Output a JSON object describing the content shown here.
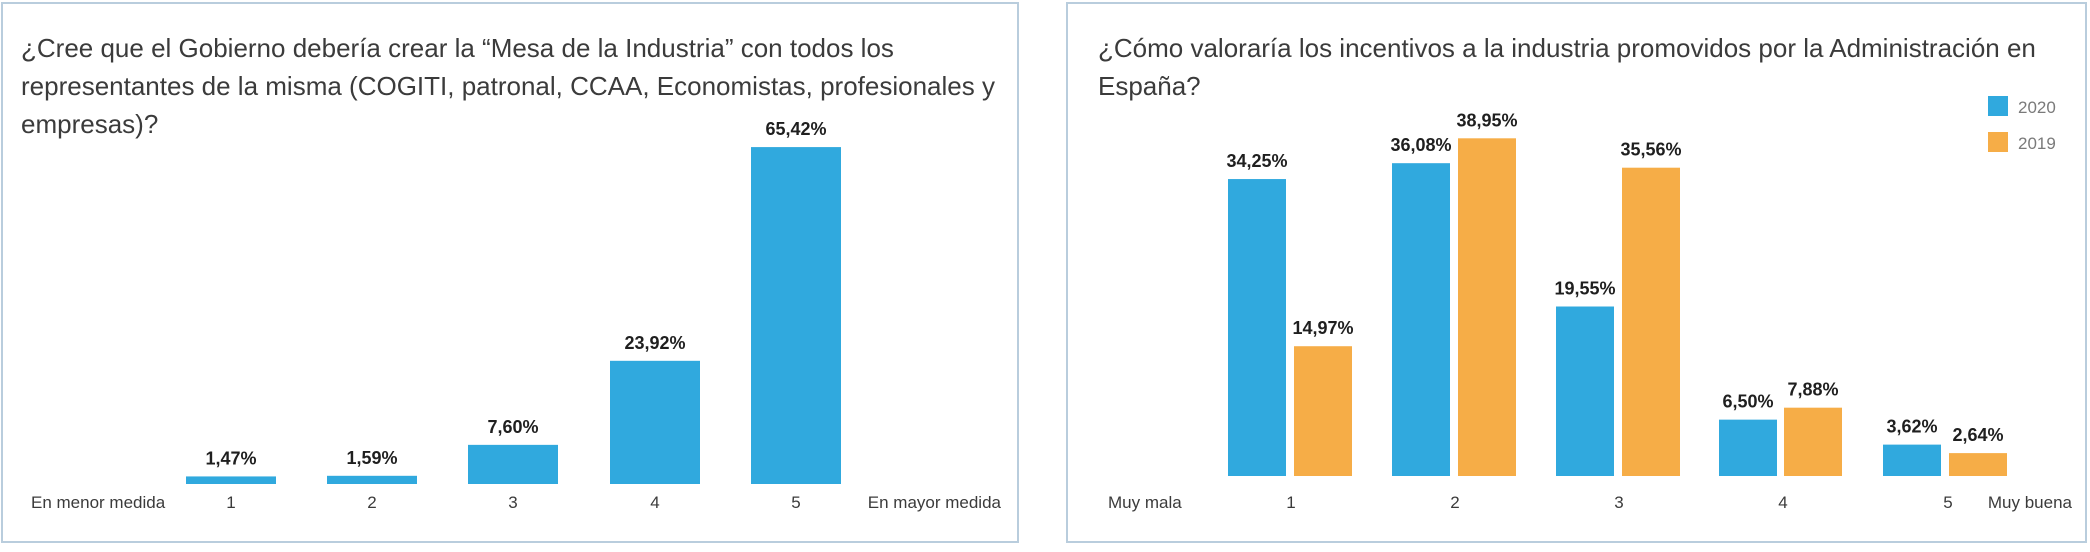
{
  "colors": {
    "blue": "#30a9de",
    "orange": "#f6ad47",
    "border": "#b9cddd"
  },
  "chart_data": [
    {
      "type": "bar",
      "title": "¿Cree que el Gobierno debería crear la “Mesa de la Industria” con todos los representantes de la misma (COGITI, patronal, CCAA, Economistas, profesionales y empresas)?",
      "categories": [
        "1",
        "2",
        "3",
        "4",
        "5"
      ],
      "values": [
        1.47,
        1.59,
        7.6,
        23.92,
        65.42
      ],
      "value_labels": [
        "1,47%",
        "1,59%",
        "7,60%",
        "23,92%",
        "65,42%"
      ],
      "left_label": "En menor medida",
      "right_label": "En mayor medida",
      "ylim": [
        0,
        70
      ]
    },
    {
      "type": "bar",
      "title": "¿Cómo valoraría los incentivos a la industria promovidos por la Administración en España?",
      "categories": [
        "1",
        "2",
        "3",
        "4",
        "5"
      ],
      "series": [
        {
          "name": "2020",
          "values": [
            34.25,
            36.08,
            19.55,
            6.5,
            3.62
          ],
          "value_labels": [
            "34,25%",
            "36,08%",
            "19,55%",
            "6,50%",
            "3,62%"
          ]
        },
        {
          "name": "2019",
          "values": [
            14.97,
            38.95,
            35.56,
            7.88,
            2.64
          ],
          "value_labels": [
            "14,97%",
            "38,95%",
            "35,56%",
            "7,88%",
            "2,64%"
          ]
        }
      ],
      "left_label": "Muy mala",
      "right_label": "Muy buena",
      "legend": [
        "2020",
        "2019"
      ],
      "ylim": [
        0,
        40
      ]
    }
  ]
}
